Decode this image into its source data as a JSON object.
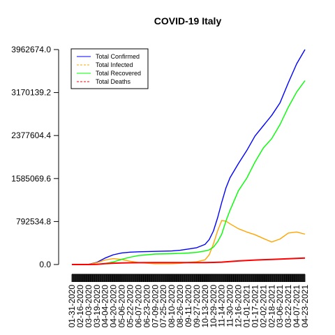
{
  "chart_data": {
    "type": "line",
    "title": "COVID-19 Italy",
    "xlabel": "",
    "ylabel": "",
    "ylim": [
      0,
      3962674
    ],
    "y_ticks": [
      0.0,
      792534.8,
      1585069.6,
      2377604.4,
      3170139.2,
      3962674.0
    ],
    "y_tick_labels": [
      "0.0",
      "792534.8",
      "1585069.6",
      "2377604.4",
      "3170139.2",
      "3962674.0"
    ],
    "x_tick_labels": [
      "01-31-2020",
      "02-16-2020",
      "03-03-2020",
      "03-19-2020",
      "04-04-2020",
      "04-20-2020",
      "05-06-2020",
      "05-22-2020",
      "06-07-2020",
      "06-23-2020",
      "07-09-2020",
      "07-25-2020",
      "08-10-2020",
      "08-26-2020",
      "09-11-2020",
      "09-27-2020",
      "10-13-2020",
      "10-29-2020",
      "11-14-2020",
      "11-30-2020",
      "12-16-2020",
      "01-01-2021",
      "01-17-2021",
      "02-02-2021",
      "02-18-2021",
      "03-06-2021",
      "03-22-2021",
      "04-07-2021",
      "04-23-2021"
    ],
    "legend_position": "top-left",
    "grid": false,
    "series": [
      {
        "name": "Total Confirmed",
        "color": "#0000ff",
        "line_style": "solid",
        "points": [
          [
            "01-31-2020",
            0
          ],
          [
            "03-03-2020",
            2500
          ],
          [
            "03-19-2020",
            40000
          ],
          [
            "04-04-2020",
            120000
          ],
          [
            "04-20-2020",
            180000
          ],
          [
            "05-06-2020",
            214000
          ],
          [
            "05-22-2020",
            228000
          ],
          [
            "06-07-2020",
            234000
          ],
          [
            "07-09-2020",
            242000
          ],
          [
            "08-10-2020",
            250000
          ],
          [
            "08-26-2020",
            262000
          ],
          [
            "09-11-2020",
            285000
          ],
          [
            "09-27-2020",
            310000
          ],
          [
            "10-13-2020",
            372000
          ],
          [
            "10-21-2020",
            460000
          ],
          [
            "10-29-2020",
            617000
          ],
          [
            "11-06-2020",
            862000
          ],
          [
            "11-14-2020",
            1145000
          ],
          [
            "11-22-2020",
            1410000
          ],
          [
            "11-30-2020",
            1600000
          ],
          [
            "12-16-2020",
            1860000
          ],
          [
            "01-01-2021",
            2100000
          ],
          [
            "01-17-2021",
            2370000
          ],
          [
            "02-02-2021",
            2560000
          ],
          [
            "02-18-2021",
            2750000
          ],
          [
            "03-06-2021",
            2980000
          ],
          [
            "03-22-2021",
            3350000
          ],
          [
            "04-07-2021",
            3700000
          ],
          [
            "04-23-2021",
            3962674
          ]
        ]
      },
      {
        "name": "Total Infected",
        "color": "#ffa500",
        "line_style": "dashed",
        "points": [
          [
            "01-31-2020",
            0
          ],
          [
            "03-03-2020",
            2000
          ],
          [
            "03-19-2020",
            33000
          ],
          [
            "04-04-2020",
            85000
          ],
          [
            "04-20-2020",
            108000
          ],
          [
            "05-06-2020",
            92000
          ],
          [
            "05-22-2020",
            60000
          ],
          [
            "06-07-2020",
            36000
          ],
          [
            "07-09-2020",
            14000
          ],
          [
            "08-10-2020",
            15000
          ],
          [
            "08-26-2020",
            22000
          ],
          [
            "09-11-2020",
            38000
          ],
          [
            "09-27-2020",
            50000
          ],
          [
            "10-13-2020",
            87000
          ],
          [
            "10-21-2020",
            180000
          ],
          [
            "10-29-2020",
            380000
          ],
          [
            "11-06-2020",
            620000
          ],
          [
            "11-14-2020",
            810000
          ],
          [
            "11-22-2020",
            800000
          ],
          [
            "11-30-2020",
            750000
          ],
          [
            "12-16-2020",
            660000
          ],
          [
            "01-01-2021",
            600000
          ],
          [
            "01-17-2021",
            550000
          ],
          [
            "02-02-2021",
            480000
          ],
          [
            "02-18-2021",
            415000
          ],
          [
            "03-06-2021",
            470000
          ],
          [
            "03-22-2021",
            580000
          ],
          [
            "04-07-2021",
            600000
          ],
          [
            "04-23-2021",
            560000
          ]
        ]
      },
      {
        "name": "Total Recovered",
        "color": "#00ff00",
        "line_style": "solid",
        "points": [
          [
            "01-31-2020",
            0
          ],
          [
            "03-03-2020",
            100
          ],
          [
            "03-19-2020",
            3000
          ],
          [
            "04-04-2020",
            20000
          ],
          [
            "04-20-2020",
            47000
          ],
          [
            "05-06-2020",
            95000
          ],
          [
            "05-22-2020",
            135000
          ],
          [
            "06-07-2020",
            165000
          ],
          [
            "07-09-2020",
            193000
          ],
          [
            "08-10-2020",
            200000
          ],
          [
            "08-26-2020",
            205000
          ],
          [
            "09-11-2020",
            212000
          ],
          [
            "09-27-2020",
            224000
          ],
          [
            "10-13-2020",
            249000
          ],
          [
            "10-21-2020",
            270000
          ],
          [
            "10-29-2020",
            320000
          ],
          [
            "11-06-2020",
            420000
          ],
          [
            "11-14-2020",
            560000
          ],
          [
            "11-22-2020",
            800000
          ],
          [
            "11-30-2020",
            1000000
          ],
          [
            "12-16-2020",
            1360000
          ],
          [
            "01-01-2021",
            1590000
          ],
          [
            "01-17-2021",
            1890000
          ],
          [
            "02-02-2021",
            2150000
          ],
          [
            "02-18-2021",
            2320000
          ],
          [
            "03-06-2021",
            2580000
          ],
          [
            "03-22-2021",
            2900000
          ],
          [
            "04-07-2021",
            3180000
          ],
          [
            "04-23-2021",
            3390000
          ]
        ]
      },
      {
        "name": "Total Deaths",
        "color": "#ff0000",
        "line_style": "dashed",
        "points": [
          [
            "01-31-2020",
            0
          ],
          [
            "03-03-2020",
            100
          ],
          [
            "03-19-2020",
            3400
          ],
          [
            "04-04-2020",
            15000
          ],
          [
            "04-20-2020",
            24000
          ],
          [
            "05-06-2020",
            29000
          ],
          [
            "05-22-2020",
            32500
          ],
          [
            "06-07-2020",
            33900
          ],
          [
            "07-09-2020",
            34900
          ],
          [
            "08-10-2020",
            35200
          ],
          [
            "08-26-2020",
            35400
          ],
          [
            "09-11-2020",
            35600
          ],
          [
            "09-27-2020",
            35800
          ],
          [
            "10-13-2020",
            36300
          ],
          [
            "10-29-2020",
            38000
          ],
          [
            "11-14-2020",
            44000
          ],
          [
            "11-30-2020",
            55000
          ],
          [
            "12-16-2020",
            66000
          ],
          [
            "01-01-2021",
            75000
          ],
          [
            "01-17-2021",
            82000
          ],
          [
            "02-02-2021",
            89000
          ],
          [
            "02-18-2021",
            94000
          ],
          [
            "03-06-2021",
            100000
          ],
          [
            "03-22-2021",
            106000
          ],
          [
            "04-07-2021",
            113000
          ],
          [
            "04-23-2021",
            118000
          ]
        ]
      }
    ]
  }
}
